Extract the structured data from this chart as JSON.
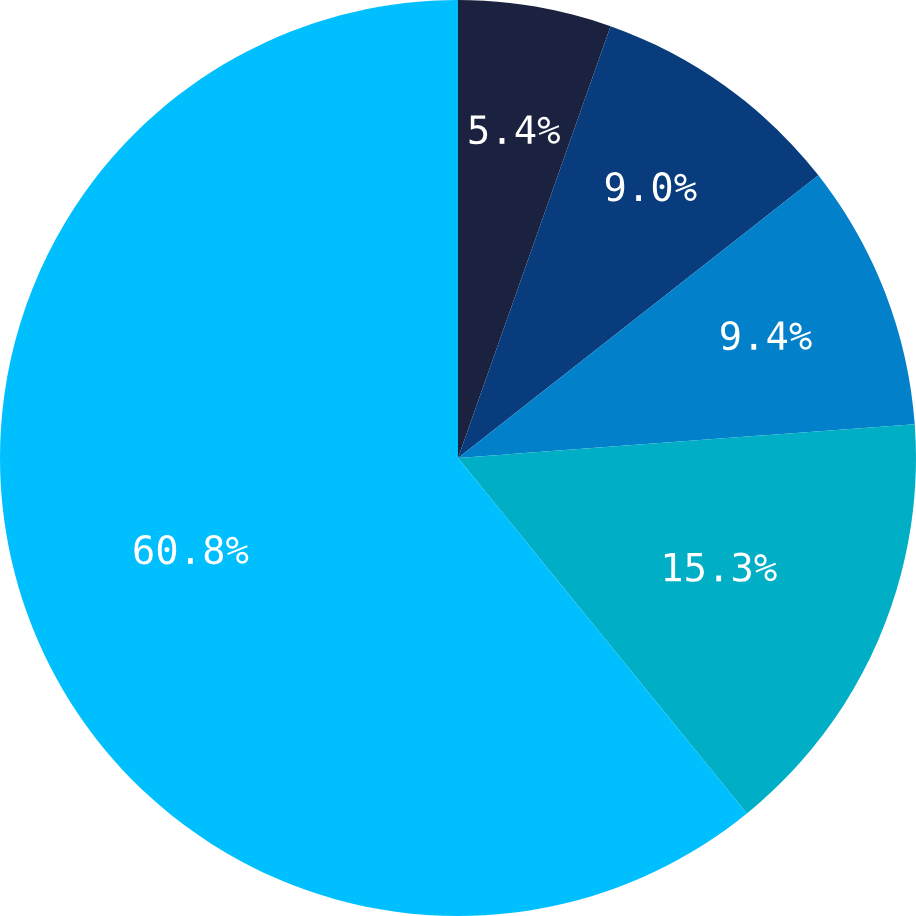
{
  "chart_data": {
    "type": "pie",
    "categories": [
      null,
      null,
      null,
      null,
      null
    ],
    "values": [
      5.4,
      9.0,
      9.4,
      15.3,
      60.8
    ],
    "value_labels": [
      "5.4%",
      "9.0%",
      "9.4%",
      "15.3%",
      "60.8%"
    ],
    "colors": [
      "#1b2240",
      "#083c7c",
      "#0281ca",
      "#00aec6",
      "#00bfff"
    ]
  }
}
